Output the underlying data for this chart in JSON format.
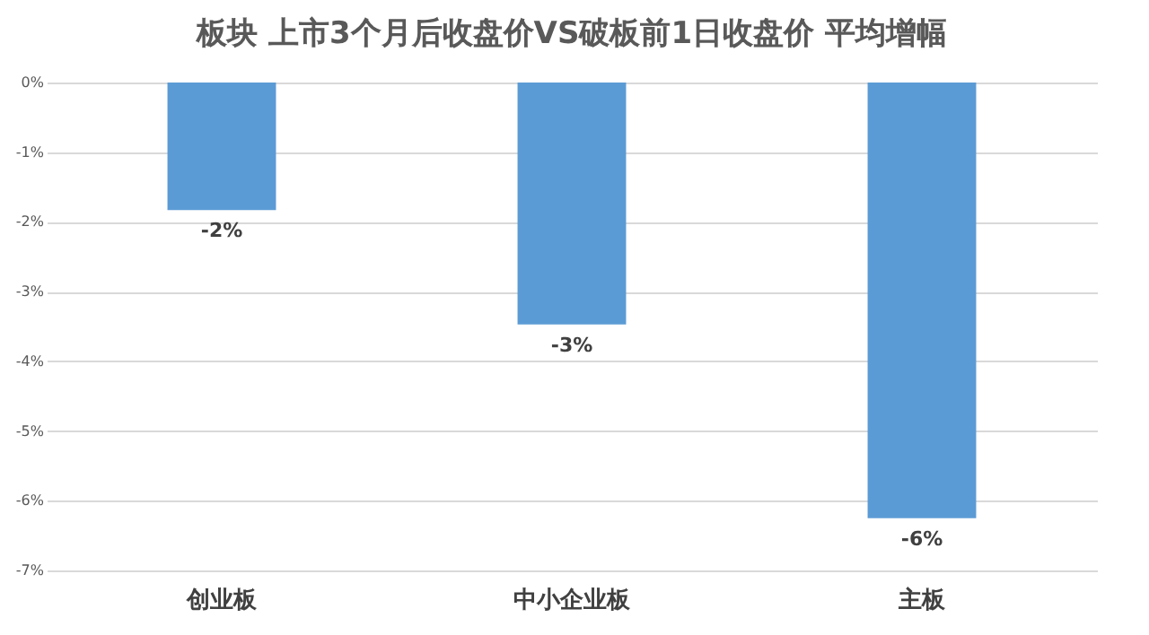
{
  "chart_data": {
    "type": "bar",
    "title": "板块 上市3个月后收盘价VS破板前1日收盘价 平均增幅",
    "categories": [
      "创业板",
      "中小企业板",
      "主板"
    ],
    "values": [
      -1.83,
      -3.47,
      -6.25
    ],
    "value_labels": [
      "-2%",
      "-3%",
      "-6%"
    ],
    "color": "#5b9bd5",
    "ylim": [
      -7,
      0
    ],
    "yticks": [
      {
        "value": 0,
        "label": "0%"
      },
      {
        "value": -1,
        "label": "-1%"
      },
      {
        "value": -2,
        "label": "-2%"
      },
      {
        "value": -3,
        "label": "-3%"
      },
      {
        "value": -4,
        "label": "-4%"
      },
      {
        "value": -5,
        "label": "-5%"
      },
      {
        "value": -6,
        "label": "-6%"
      },
      {
        "value": -7,
        "label": "-7%"
      }
    ],
    "grid": "y"
  }
}
